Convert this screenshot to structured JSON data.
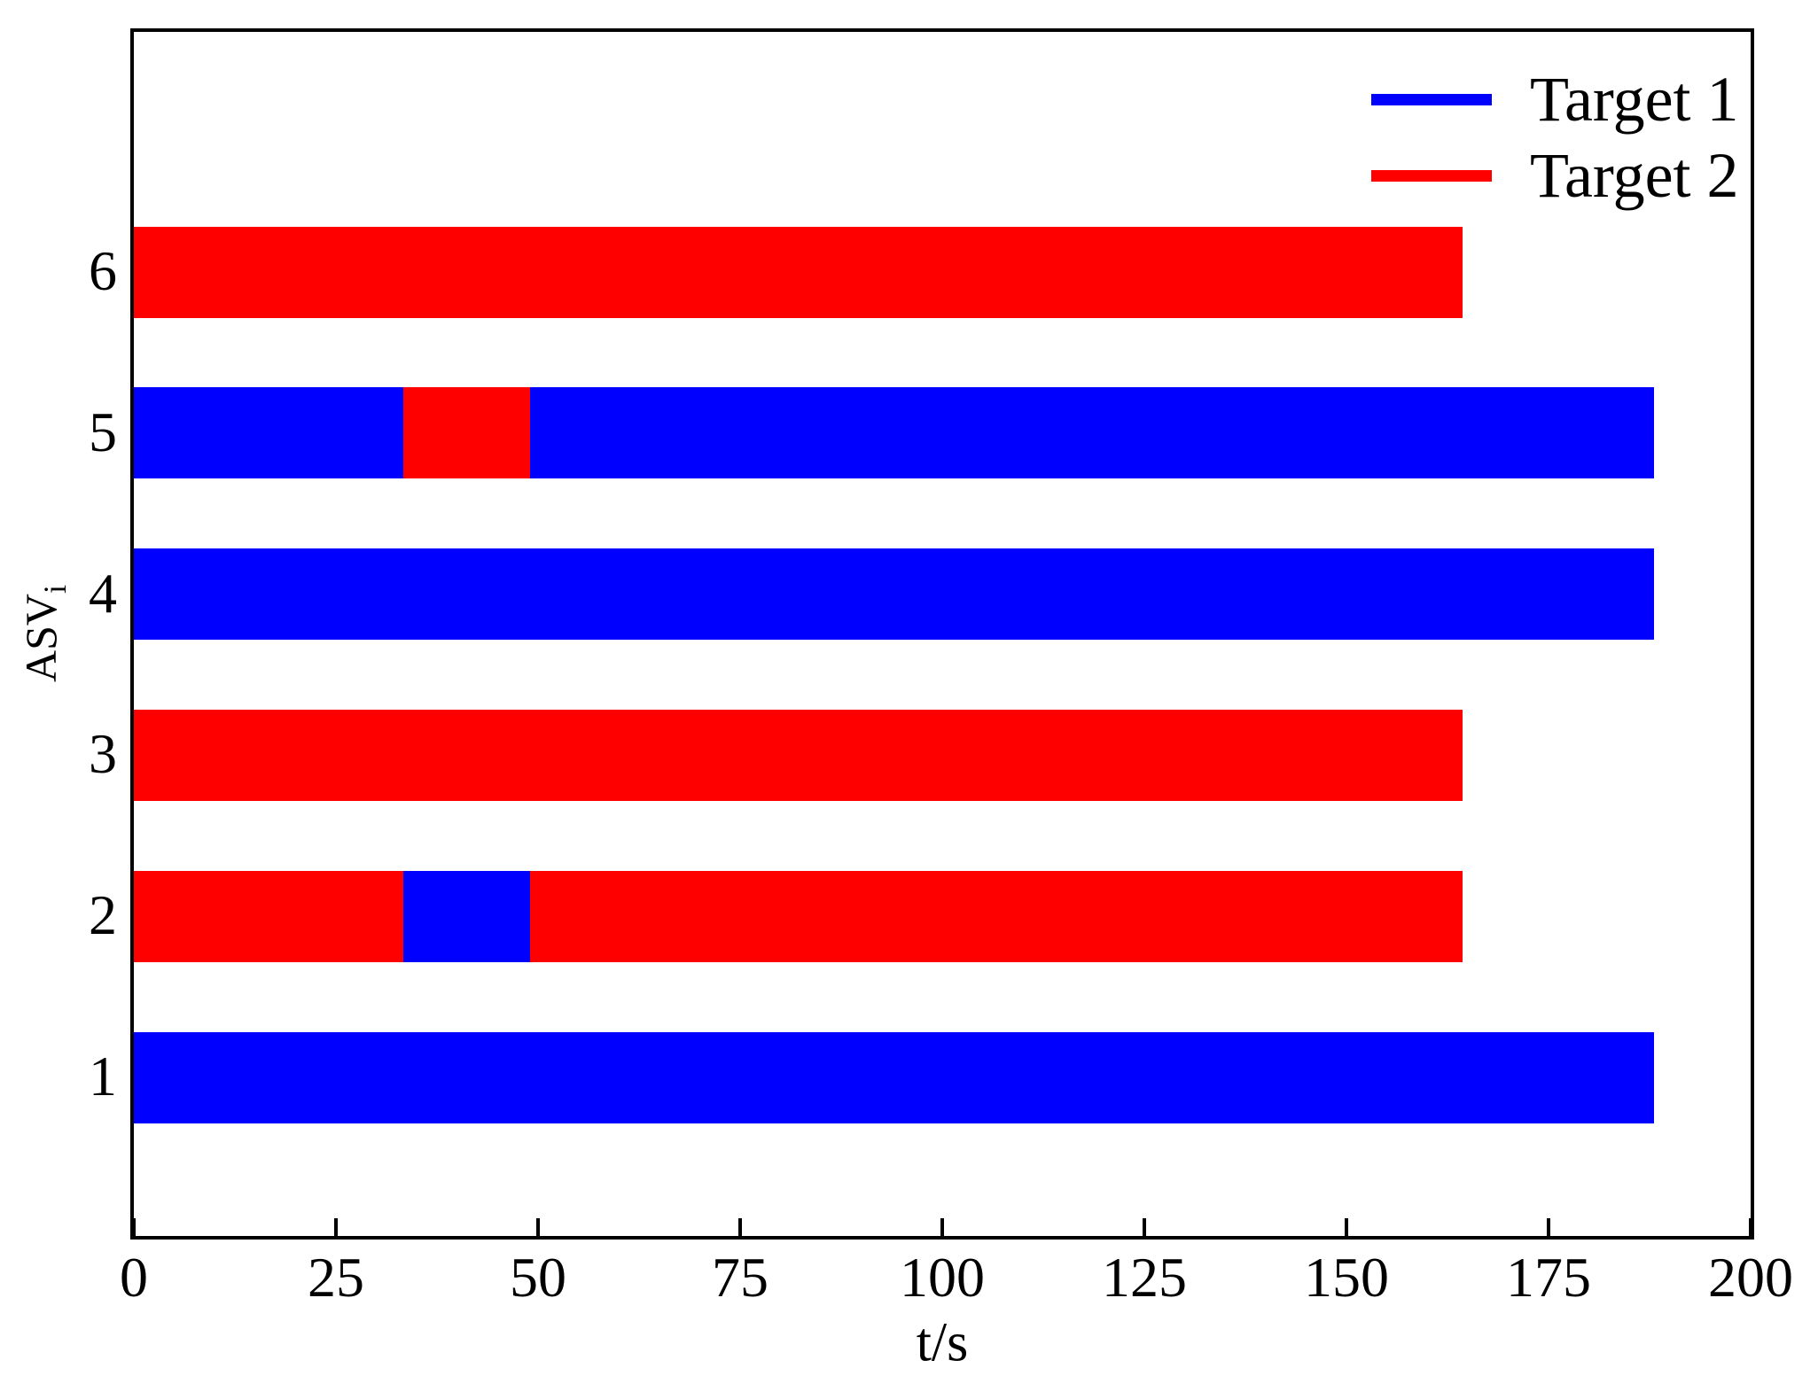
{
  "chart_data": {
    "type": "bar",
    "orientation": "horizontal",
    "title": "",
    "xlabel": "t/s",
    "ylabel": "ASV",
    "ylabel_subscript": "i",
    "xlim": [
      0,
      200
    ],
    "ylim": [
      0,
      7.5
    ],
    "grid": false,
    "tick_direction": "in",
    "legend_position": "upper right",
    "legend_frame": false,
    "axis_color": "#000000",
    "background_color": "#ffffff",
    "legend": [
      {
        "label": "Target 1",
        "color": "#0000ff"
      },
      {
        "label": "Target 2",
        "color": "#ff0000"
      }
    ],
    "xticks": [
      0,
      25,
      50,
      75,
      100,
      125,
      150,
      175,
      200
    ],
    "categories": [
      "1",
      "2",
      "3",
      "4",
      "5",
      "6"
    ],
    "bars": [
      {
        "category": "1",
        "segments": [
          {
            "target": "Target 1",
            "start": 0,
            "end": 188
          }
        ]
      },
      {
        "category": "2",
        "segments": [
          {
            "target": "Target 2",
            "start": 0,
            "end": 33.3
          },
          {
            "target": "Target 1",
            "start": 33.3,
            "end": 49
          },
          {
            "target": "Target 2",
            "start": 49,
            "end": 164.4
          }
        ]
      },
      {
        "category": "3",
        "segments": [
          {
            "target": "Target 2",
            "start": 0,
            "end": 164.4
          }
        ]
      },
      {
        "category": "4",
        "segments": [
          {
            "target": "Target 1",
            "start": 0,
            "end": 188
          }
        ]
      },
      {
        "category": "5",
        "segments": [
          {
            "target": "Target 1",
            "start": 0,
            "end": 33.3
          },
          {
            "target": "Target 2",
            "start": 33.3,
            "end": 49
          },
          {
            "target": "Target 1",
            "start": 49,
            "end": 188
          }
        ]
      },
      {
        "category": "6",
        "segments": [
          {
            "target": "Target 2",
            "start": 0,
            "end": 164.4
          }
        ]
      }
    ]
  }
}
